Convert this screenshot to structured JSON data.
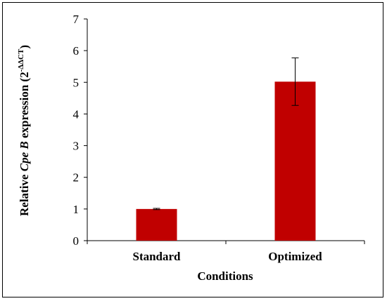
{
  "chart_data": {
    "type": "bar",
    "categories": [
      "Standard",
      "Optimized"
    ],
    "values": [
      1.0,
      5.02
    ],
    "error": [
      0.02,
      0.75
    ],
    "xlabel": "Conditions",
    "ylabel": {
      "prefix": "Relative ",
      "gene": "Cpe B",
      "middle": " expression (2",
      "superscript": "-ΔΔCT",
      "suffix": ")"
    },
    "ylim": [
      0,
      7
    ],
    "yticks": [
      "0",
      "1",
      "2",
      "3",
      "4",
      "5",
      "6",
      "7"
    ],
    "bar_color": "#c00000",
    "grid": false
  }
}
